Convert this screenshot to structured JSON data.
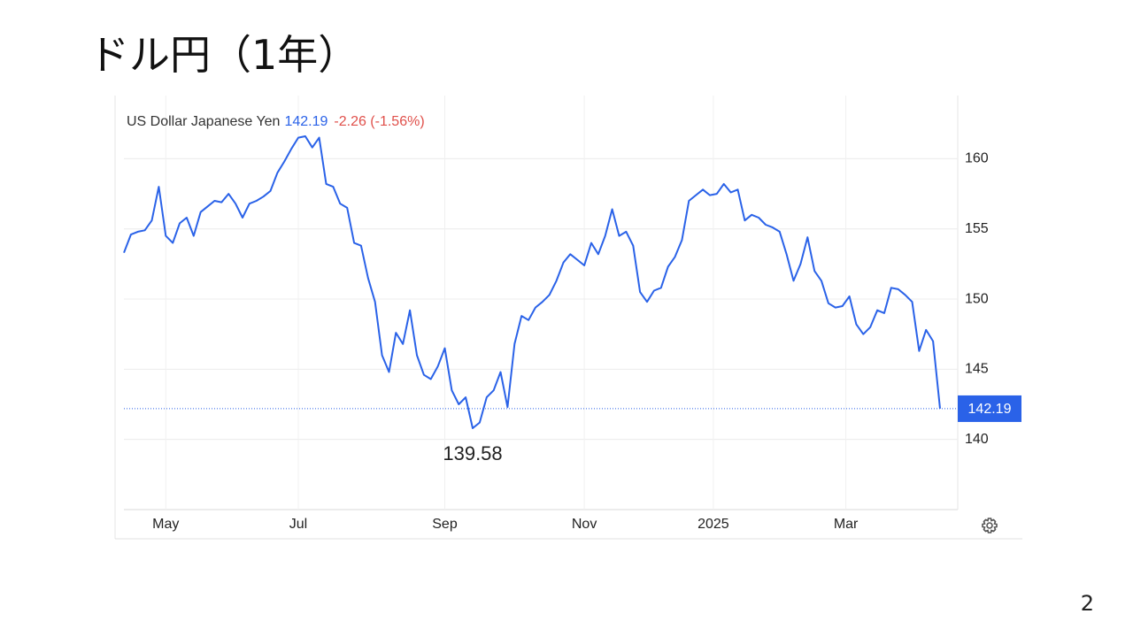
{
  "slide": {
    "title": "ドル円（1年）",
    "page_number": "2"
  },
  "chart_data": {
    "type": "line",
    "header": {
      "name": "US Dollar Japanese Yen",
      "change": "-2.26 (-1.56%)"
    },
    "low_annotation": 139.58,
    "series": [
      {
        "name": "US Dollar Japanese Yen",
        "color": "#2a62e8",
        "values": [
          153.3,
          154.6,
          154.8,
          154.9,
          155.6,
          158.0,
          154.5,
          154.0,
          155.4,
          155.8,
          154.5,
          156.2,
          156.6,
          157.0,
          156.9,
          157.5,
          156.8,
          155.8,
          156.8,
          157.0,
          157.3,
          157.7,
          159.0,
          159.8,
          160.7,
          161.5,
          161.6,
          160.8,
          161.5,
          158.2,
          158.0,
          156.8,
          156.5,
          154.0,
          153.8,
          151.5,
          149.8,
          146.0,
          144.8,
          147.6,
          146.8,
          149.2,
          146.0,
          144.6,
          144.3,
          145.2,
          146.5,
          143.5,
          142.5,
          143.0,
          140.8,
          141.2,
          143.0,
          143.5,
          144.8,
          142.3,
          146.8,
          148.8,
          148.5,
          149.4,
          149.8,
          150.3,
          151.3,
          152.6,
          153.2,
          152.8,
          152.4,
          154.0,
          153.2,
          154.5,
          156.4,
          154.5,
          154.8,
          153.8,
          150.5,
          149.8,
          150.6,
          150.8,
          152.3,
          153.0,
          154.2,
          157.0,
          157.4,
          157.8,
          157.4,
          157.5,
          158.2,
          157.6,
          157.8,
          155.6,
          156.0,
          155.8,
          155.3,
          155.1,
          154.8,
          153.2,
          151.3,
          152.5,
          154.4,
          152.0,
          151.3,
          149.7,
          149.4,
          149.5,
          150.2,
          148.2,
          147.5,
          148.0,
          149.2,
          149.0,
          150.8,
          150.7,
          150.3,
          149.8,
          146.3,
          147.8,
          147.0,
          142.19
        ]
      }
    ],
    "xlim": [
      0,
      117
    ],
    "xticks": [
      {
        "value": 6,
        "label": "May"
      },
      {
        "value": 25,
        "label": "Jul"
      },
      {
        "value": 46,
        "label": "Sep"
      },
      {
        "value": 66,
        "label": "Nov"
      },
      {
        "value": 84.5,
        "label": "2025"
      },
      {
        "value": 103.5,
        "label": "Mar"
      }
    ],
    "ylim": [
      135,
      164.5
    ],
    "yticks": [
      140,
      145,
      150,
      155,
      160
    ],
    "grid": true,
    "change_color": "#e0504b"
  }
}
